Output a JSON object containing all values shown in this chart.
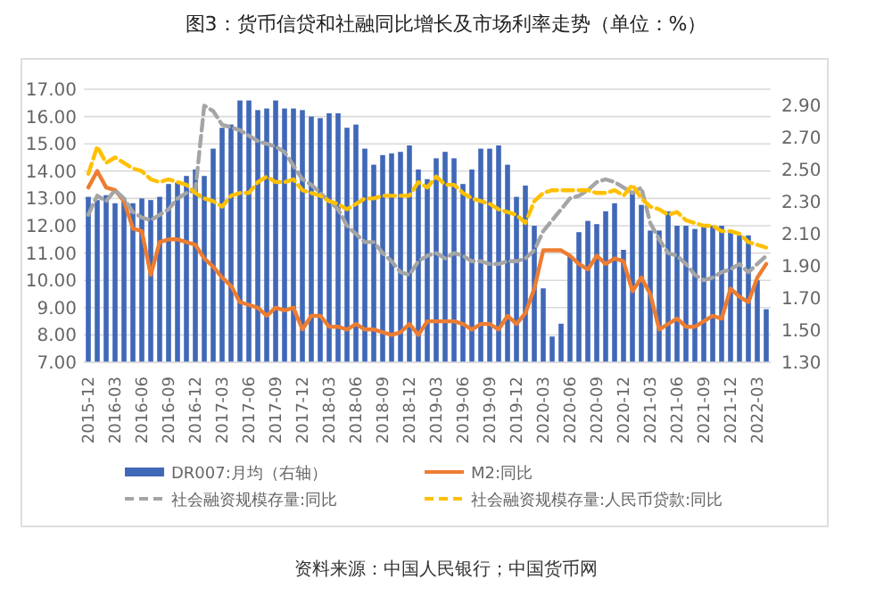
{
  "chart_data": {
    "type": "line",
    "title": "图3：货币信贷和社融同比增长及市场利率走势（单位：%）",
    "categories": [
      "2015-12",
      null,
      null,
      "2016-03",
      null,
      null,
      "2016-06",
      null,
      null,
      "2016-09",
      null,
      null,
      "2016-12",
      null,
      null,
      "2017-03",
      null,
      null,
      "2017-06",
      null,
      null,
      "2017-09",
      null,
      null,
      "2017-12",
      null,
      null,
      "2018-03",
      null,
      null,
      "2018-06",
      null,
      null,
      "2018-09",
      null,
      null,
      "2018-12",
      null,
      null,
      "2019-03",
      null,
      null,
      "2019-06",
      null,
      null,
      "2019-09",
      null,
      null,
      "2019-12",
      null,
      null,
      "2020-03",
      null,
      null,
      "2020-06",
      null,
      null,
      "2020-09",
      null,
      null,
      "2020-12",
      null,
      null,
      "2021-03",
      null,
      null,
      "2021-06",
      null,
      null,
      "2021-09",
      null,
      null,
      "2021-12",
      null,
      null,
      "2022-03",
      null
    ],
    "series": [
      {
        "name": "DR007:月均（右轴）",
        "type": "bar",
        "axis": "y2",
        "color": "#4068b8",
        "values": [
          2.33,
          2.31,
          2.34,
          2.29,
          2.31,
          2.29,
          2.32,
          2.31,
          2.33,
          2.41,
          2.42,
          2.46,
          2.5,
          2.46,
          2.63,
          2.76,
          2.78,
          2.93,
          2.93,
          2.87,
          2.88,
          2.93,
          2.88,
          2.88,
          2.87,
          2.83,
          2.82,
          2.85,
          2.85,
          2.76,
          2.78,
          2.63,
          2.53,
          2.59,
          2.6,
          2.61,
          2.65,
          2.5,
          2.44,
          2.57,
          2.61,
          2.57,
          2.41,
          2.5,
          2.63,
          2.63,
          2.65,
          2.53,
          2.33,
          2.4,
          2.15,
          1.76,
          1.46,
          1.54,
          1.96,
          2.11,
          2.18,
          2.16,
          2.24,
          2.29,
          2.0,
          2.35,
          2.28,
          2.12,
          2.12,
          2.24,
          2.15,
          2.15,
          2.13,
          2.15,
          2.15,
          2.15,
          2.11,
          2.09,
          2.09,
          1.81,
          1.63
        ]
      },
      {
        "name": "M2:同比",
        "color": "#ed7d31",
        "line_style": "solid",
        "values": [
          13.4,
          14.0,
          13.4,
          13.3,
          12.9,
          11.9,
          11.8,
          10.2,
          11.4,
          11.5,
          11.5,
          11.4,
          11.3,
          10.8,
          10.5,
          10.1,
          9.8,
          9.2,
          9.1,
          9.0,
          8.7,
          9.0,
          8.9,
          9.0,
          8.2,
          8.7,
          8.7,
          8.3,
          8.3,
          8.2,
          8.4,
          8.2,
          8.2,
          8.1,
          8.0,
          8.1,
          8.4,
          8.0,
          8.5,
          8.5,
          8.5,
          8.5,
          8.4,
          8.2,
          8.4,
          8.4,
          8.2,
          8.7,
          8.4,
          8.8,
          9.7,
          11.1,
          11.1,
          11.1,
          10.9,
          10.6,
          10.4,
          10.9,
          10.6,
          10.8,
          10.7,
          9.6,
          10.1,
          9.5,
          8.2,
          8.4,
          8.6,
          8.3,
          8.3,
          8.5,
          8.7,
          8.6,
          9.7,
          9.4,
          9.2,
          10.1,
          10.6
        ]
      },
      {
        "name": "社会融资规模存量:同比",
        "color": "#a5a5a5",
        "line_style": "dashed",
        "values": [
          12.4,
          13.1,
          12.9,
          13.3,
          13.0,
          12.5,
          12.3,
          12.2,
          12.4,
          12.6,
          13.0,
          13.2,
          13.3,
          16.4,
          16.2,
          15.7,
          15.6,
          15.5,
          15.3,
          15.1,
          15.0,
          14.9,
          14.7,
          14.2,
          13.7,
          13.5,
          13.2,
          12.9,
          12.6,
          12.0,
          11.7,
          11.4,
          11.4,
          11.0,
          10.7,
          10.3,
          10.2,
          10.7,
          10.9,
          11.0,
          10.8,
          11.0,
          10.9,
          10.7,
          10.7,
          10.6,
          10.6,
          10.7,
          10.7,
          10.8,
          11.1,
          11.8,
          12.2,
          12.6,
          13.0,
          13.1,
          13.3,
          13.6,
          13.7,
          13.6,
          13.4,
          13.2,
          13.4,
          12.1,
          11.5,
          11.0,
          10.9,
          10.6,
          10.2,
          10.0,
          10.1,
          10.3,
          10.4,
          10.6,
          10.3,
          10.6,
          10.9
        ]
      },
      {
        "name": "社会融资规模存量:人民币贷款:同比",
        "color": "#ffc000",
        "line_style": "dashed",
        "values": [
          13.9,
          14.9,
          14.3,
          14.5,
          14.3,
          14.1,
          14.0,
          13.7,
          13.6,
          13.7,
          13.6,
          13.5,
          13.2,
          13.0,
          12.9,
          12.7,
          13.1,
          13.2,
          13.2,
          13.6,
          13.8,
          13.6,
          13.6,
          13.7,
          13.3,
          13.2,
          13.1,
          12.9,
          12.8,
          12.6,
          12.8,
          13.0,
          13.0,
          13.1,
          13.1,
          13.1,
          13.1,
          13.6,
          13.4,
          13.8,
          13.5,
          13.5,
          13.2,
          13.0,
          12.9,
          12.8,
          12.6,
          12.5,
          12.4,
          12.1,
          12.9,
          13.2,
          13.3,
          13.3,
          13.3,
          13.3,
          13.3,
          13.2,
          13.2,
          13.3,
          13.1,
          13.5,
          13.0,
          12.7,
          12.6,
          12.4,
          12.5,
          12.2,
          12.1,
          12.0,
          12.0,
          11.8,
          11.8,
          11.7,
          11.4,
          11.3,
          11.2
        ]
      }
    ],
    "ylim": [
      7,
      17
    ],
    "yticks": [
      {
        "value": 7,
        "label": "7.00"
      },
      {
        "value": 8,
        "label": "8.00"
      },
      {
        "value": 9,
        "label": "9.00"
      },
      {
        "value": 10,
        "label": "10.00"
      },
      {
        "value": 11,
        "label": "11.00"
      },
      {
        "value": 12,
        "label": "12.00"
      },
      {
        "value": 13,
        "label": "13.00"
      },
      {
        "value": 14,
        "label": "14.00"
      },
      {
        "value": 15,
        "label": "15.00"
      },
      {
        "value": 16,
        "label": "16.00"
      },
      {
        "value": 17,
        "label": "17.00"
      }
    ],
    "y2lim": [
      1.3,
      3.0
    ],
    "y2ticks": [
      {
        "value": 1.3,
        "label": "1.30"
      },
      {
        "value": 1.5,
        "label": "1.50"
      },
      {
        "value": 1.7,
        "label": "1.70"
      },
      {
        "value": 1.9,
        "label": "1.90"
      },
      {
        "value": 2.1,
        "label": "2.10"
      },
      {
        "value": 2.3,
        "label": "2.30"
      },
      {
        "value": 2.5,
        "label": "2.50"
      },
      {
        "value": 2.7,
        "label": "2.70"
      },
      {
        "value": 2.9,
        "label": "2.90"
      }
    ],
    "grid": "y",
    "legend": "bottom",
    "annotations": [
      "资料来源：中国人民银行；中国货币网"
    ]
  }
}
